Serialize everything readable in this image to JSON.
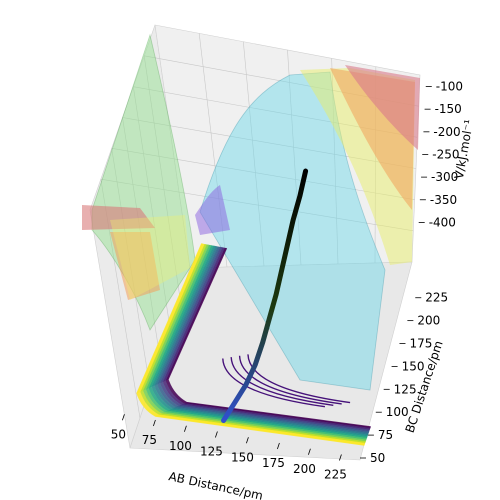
{
  "chart_data": {
    "type": "surface-3d",
    "xlabel": "AB Distance/pm",
    "ylabel": "BC Distance/pm",
    "zlabel": "V/kJ.mol⁻¹",
    "xticks": [
      50,
      75,
      100,
      125,
      150,
      175,
      200,
      225
    ],
    "yticks": [
      50,
      75,
      100,
      125,
      150,
      175,
      200,
      225
    ],
    "zticks": [
      -100,
      -150,
      -200,
      -250,
      -300,
      -350,
      -400
    ],
    "xlim": [
      40,
      240
    ],
    "ylim": [
      50,
      240
    ],
    "zlim": [
      -430,
      -90
    ],
    "grid": true,
    "colormap_surface": "jet",
    "colormap_contours": "viridis",
    "trajectory": {
      "description": "reaction path",
      "color_start": "#000000",
      "color_end": "#3050d0",
      "points": [
        {
          "ab": 135,
          "bc": 195
        },
        {
          "ab": 133,
          "bc": 185
        },
        {
          "ab": 130,
          "bc": 175
        },
        {
          "ab": 128,
          "bc": 165
        },
        {
          "ab": 126,
          "bc": 155
        },
        {
          "ab": 124,
          "bc": 145
        },
        {
          "ab": 121,
          "bc": 135
        },
        {
          "ab": 118,
          "bc": 126
        },
        {
          "ab": 114,
          "bc": 118
        },
        {
          "ab": 108,
          "bc": 112
        },
        {
          "ab": 100,
          "bc": 108
        },
        {
          "ab": 92,
          "bc": 104
        }
      ]
    }
  }
}
